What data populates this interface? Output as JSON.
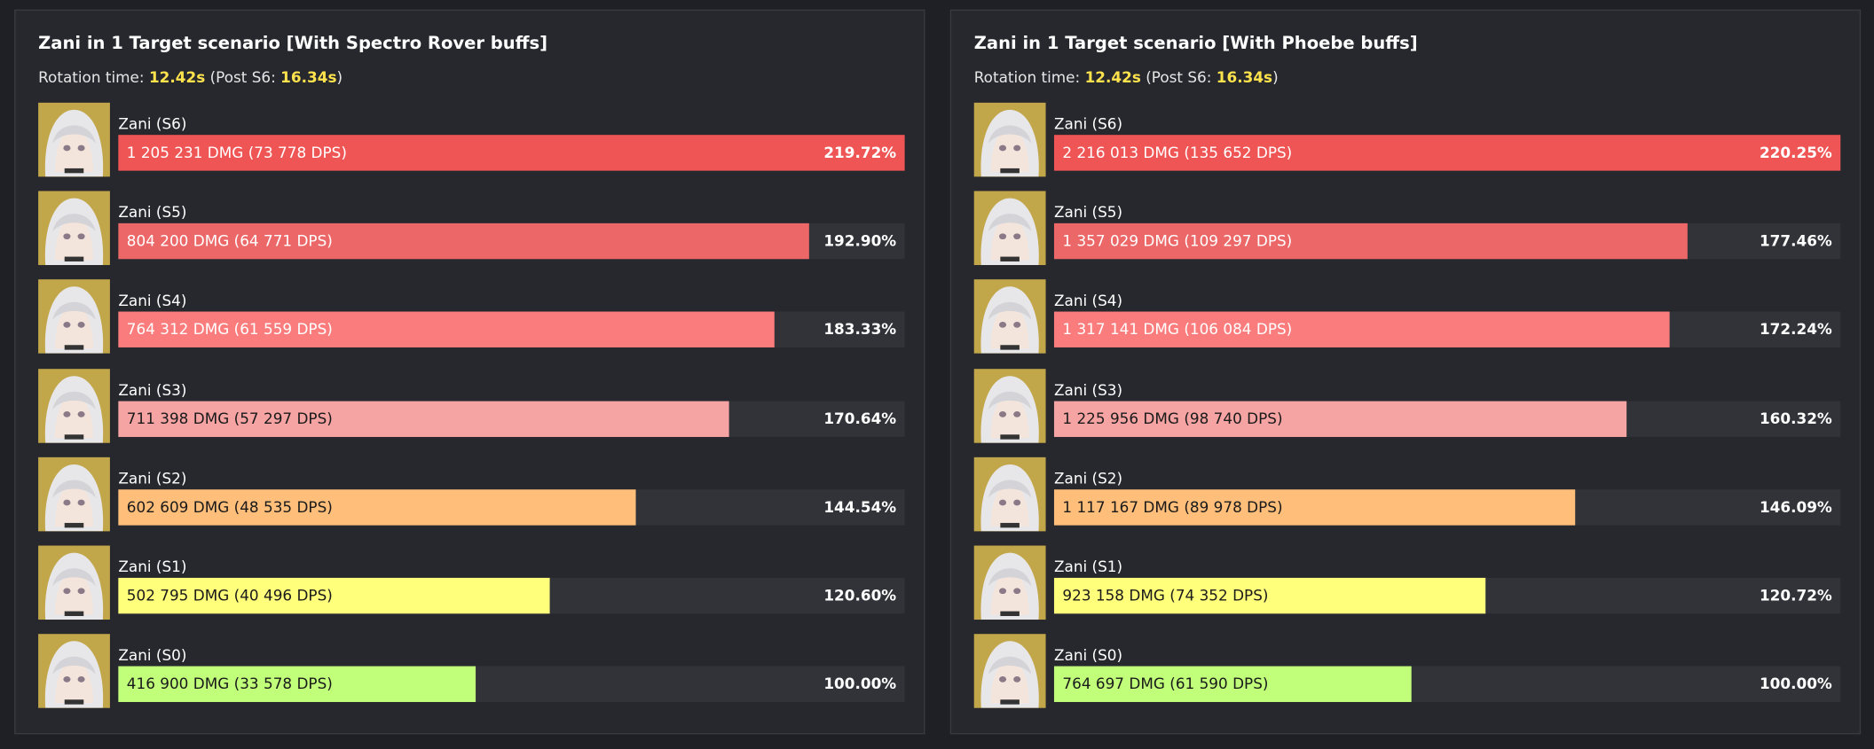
{
  "panels": [
    {
      "title": "Zani in 1 Target scenario [With Spectro Rover buffs]",
      "rotation_prefix": "Rotation time:",
      "rotation_time": "12.42s",
      "post_prefix": "(Post S6:",
      "post_time": "16.34s",
      "post_suffix": ")",
      "rows": [
        {
          "name": "Zani (S6)",
          "dmg_label": "1 205 231 DMG (73 778 DPS)",
          "percent": 219.72,
          "percent_label": "219.72%",
          "color": "#f05555"
        },
        {
          "name": "Zani (S5)",
          "dmg_label": "804 200 DMG (64 771 DPS)",
          "percent": 192.9,
          "percent_label": "192.90%",
          "color": "#ec6767"
        },
        {
          "name": "Zani (S4)",
          "dmg_label": "764 312 DMG (61 559 DPS)",
          "percent": 183.33,
          "percent_label": "183.33%",
          "color": "#fb7c7c"
        },
        {
          "name": "Zani (S3)",
          "dmg_label": "711 398 DMG (57 297 DPS)",
          "percent": 170.64,
          "percent_label": "170.64%",
          "color": "#f6a3a3"
        },
        {
          "name": "Zani (S2)",
          "dmg_label": "602 609 DMG (48 535 DPS)",
          "percent": 144.54,
          "percent_label": "144.54%",
          "color": "#ffbe7a"
        },
        {
          "name": "Zani (S1)",
          "dmg_label": "502 795 DMG (40 496 DPS)",
          "percent": 120.6,
          "percent_label": "120.60%",
          "color": "#ffff7b"
        },
        {
          "name": "Zani (S0)",
          "dmg_label": "416 900 DMG (33 578 DPS)",
          "percent": 100.0,
          "percent_label": "100.00%",
          "color": "#c1ff7a"
        }
      ]
    },
    {
      "title": "Zani in 1 Target scenario [With Phoebe buffs]",
      "rotation_prefix": "Rotation time:",
      "rotation_time": "12.42s",
      "post_prefix": "(Post S6:",
      "post_time": "16.34s",
      "post_suffix": ")",
      "rows": [
        {
          "name": "Zani (S6)",
          "dmg_label": "2 216 013 DMG (135 652 DPS)",
          "percent": 220.25,
          "percent_label": "220.25%",
          "color": "#f05555"
        },
        {
          "name": "Zani (S5)",
          "dmg_label": "1 357 029 DMG (109 297 DPS)",
          "percent": 177.46,
          "percent_label": "177.46%",
          "color": "#ec6767"
        },
        {
          "name": "Zani (S4)",
          "dmg_label": "1 317 141 DMG (106 084 DPS)",
          "percent": 172.24,
          "percent_label": "172.24%",
          "color": "#fb7c7c"
        },
        {
          "name": "Zani (S3)",
          "dmg_label": "1 225 956 DMG (98 740 DPS)",
          "percent": 160.32,
          "percent_label": "160.32%",
          "color": "#f6a3a3"
        },
        {
          "name": "Zani (S2)",
          "dmg_label": "1 117 167 DMG (89 978 DPS)",
          "percent": 146.09,
          "percent_label": "146.09%",
          "color": "#ffbe7a"
        },
        {
          "name": "Zani (S1)",
          "dmg_label": "923 158 DMG (74 352 DPS)",
          "percent": 120.72,
          "percent_label": "120.72%",
          "color": "#ffff7b"
        },
        {
          "name": "Zani (S0)",
          "dmg_label": "764 697 DMG (61 590 DPS)",
          "percent": 100.0,
          "percent_label": "100.00%",
          "color": "#c1ff7a"
        }
      ]
    }
  ]
}
